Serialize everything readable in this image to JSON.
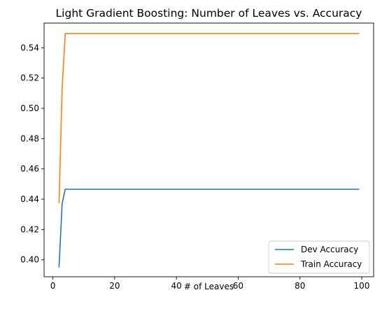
{
  "chart_data": {
    "type": "line",
    "title": "Light Gradient Boosting: Number of Leaves vs. Accuracy",
    "xlabel": "# of Leaves",
    "ylabel": "",
    "xlim": [
      -2.85,
      103.85
    ],
    "ylim": [
      0.3888,
      0.5563
    ],
    "xticks": [
      0,
      20,
      40,
      60,
      80,
      100
    ],
    "yticks": [
      0.4,
      0.42,
      0.44,
      0.46,
      0.48,
      0.5,
      0.52,
      0.54
    ],
    "xtick_labels": [
      "0",
      "20",
      "40",
      "60",
      "80",
      "100"
    ],
    "ytick_labels": [
      "0.40",
      "0.42",
      "0.44",
      "0.46",
      "0.48",
      "0.50",
      "0.52",
      "0.54"
    ],
    "grid": false,
    "legend_position": "lower-right",
    "series": [
      {
        "name": "Dev Accuracy",
        "color": "#1f77b4",
        "x": [
          2,
          3,
          4,
          99
        ],
        "y": [
          0.3954,
          0.4372,
          0.4466,
          0.4466
        ]
      },
      {
        "name": "Train Accuracy",
        "color": "#ff7f0e",
        "x": [
          2,
          3,
          4,
          99
        ],
        "y": [
          0.4378,
          0.5132,
          0.5494,
          0.5494
        ]
      }
    ]
  }
}
